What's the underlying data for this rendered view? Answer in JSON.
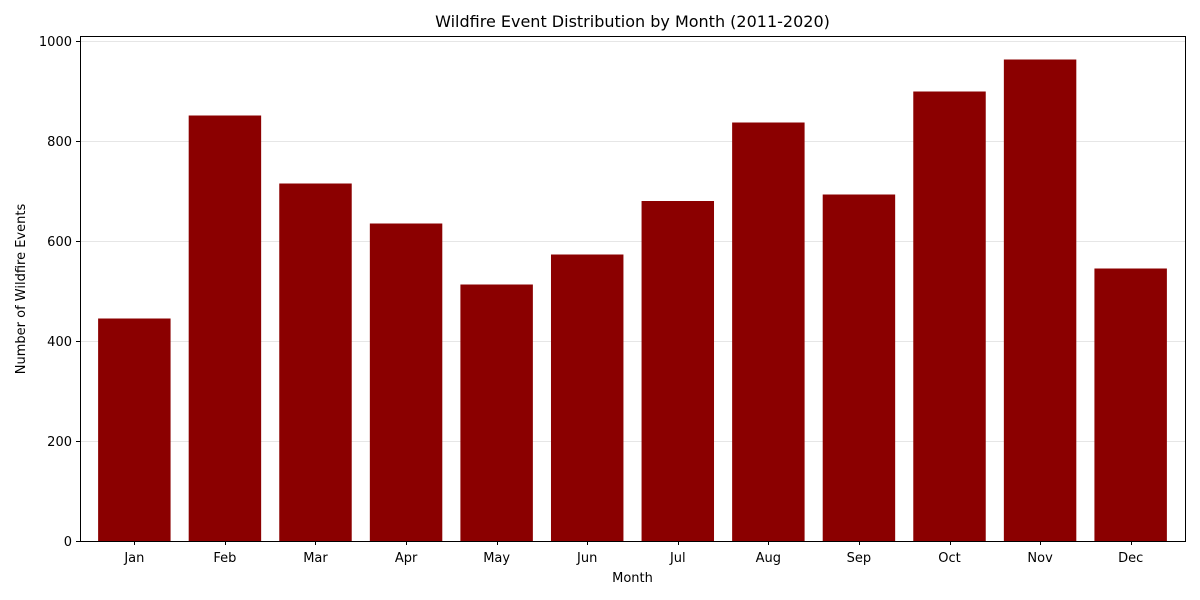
{
  "chart_data": {
    "type": "bar",
    "title": "Wildfire Event Distribution by Month (2011-2020)",
    "xlabel": "Month",
    "ylabel": "Number of Wildfire Events",
    "categories": [
      "Jan",
      "Feb",
      "Mar",
      "Apr",
      "May",
      "Jun",
      "Jul",
      "Aug",
      "Sep",
      "Oct",
      "Nov",
      "Dec"
    ],
    "values": [
      445,
      851,
      715,
      635,
      513,
      573,
      680,
      837,
      693,
      899,
      963,
      545
    ],
    "ylim": [
      0,
      1010
    ],
    "yticks": [
      0,
      200,
      400,
      600,
      800,
      1000
    ],
    "grid": "horizontal",
    "bar_color": "#8b0000",
    "grid_color": "#e6e6e6"
  }
}
